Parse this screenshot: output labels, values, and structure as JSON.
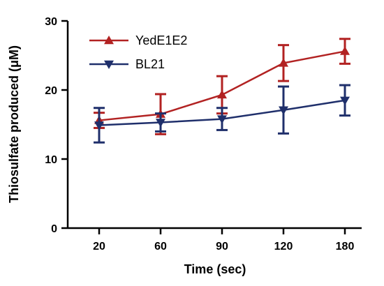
{
  "chart_data": {
    "type": "line",
    "categories": [
      "20",
      "60",
      "90",
      "120",
      "180"
    ],
    "xlabel": "Time (sec)",
    "ylabel": "Thiosulfate produced (μM)",
    "ylim": [
      0,
      30
    ],
    "yticks": [
      "0",
      "10",
      "20",
      "30"
    ],
    "grid": false,
    "legend_position": "top-left",
    "series": [
      {
        "name": "YedE1E2",
        "color": "#b22222",
        "marker": "triangle-up",
        "values": [
          15.6,
          16.5,
          19.3,
          23.9,
          25.6
        ],
        "error": [
          1.1,
          2.9,
          2.7,
          2.6,
          1.8
        ]
      },
      {
        "name": "BL21",
        "color": "#1f2f6b",
        "marker": "triangle-down",
        "values": [
          14.9,
          15.3,
          15.8,
          17.1,
          18.5
        ],
        "error": [
          2.5,
          1.3,
          1.6,
          3.4,
          2.2
        ]
      }
    ]
  }
}
